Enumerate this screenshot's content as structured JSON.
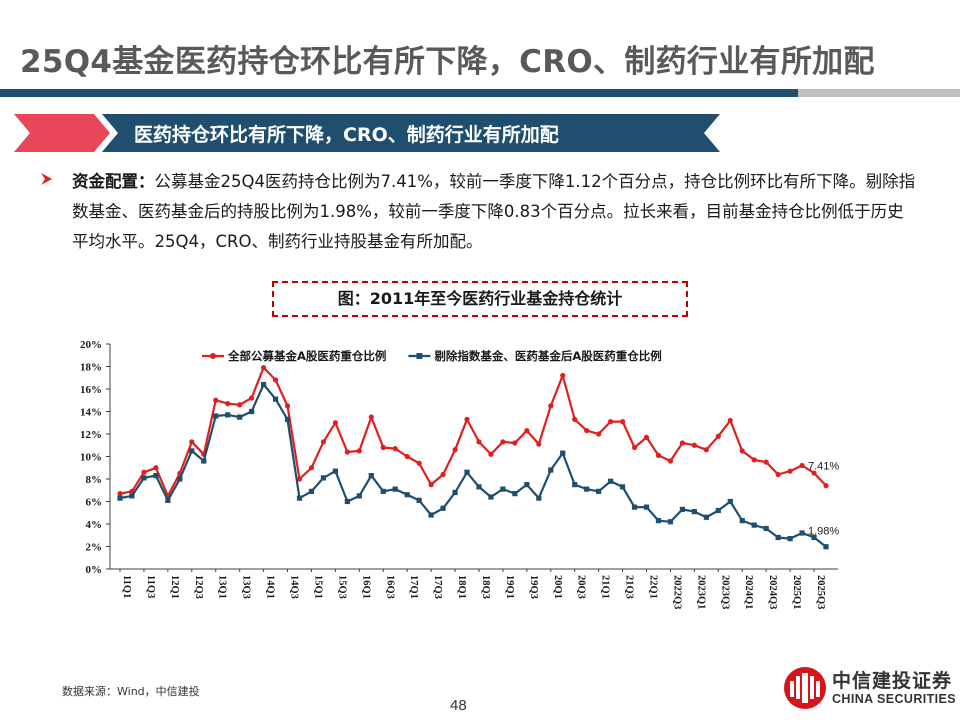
{
  "page": {
    "title": "25Q4基金医药持仓环比有所下降，CRO、制药行业有所加配",
    "page_number": "48",
    "source": "数据来源：Wind，中信建投"
  },
  "banner": {
    "text": "医药持仓环比有所下降，CRO、制药行业有所加配",
    "colors": {
      "red": "#e8475a",
      "blue": "#1f4e6f"
    }
  },
  "bullet": {
    "lead": "资金配置：",
    "text": "公募基金25Q4医药持仓比例为7.41%，较前一季度下降1.12个百分点，持仓比例环比有所下降。剔除指数基金、医药基金后的持股比例为1.98%，较前一季度下降0.83个百分点。拉长来看，目前基金持仓比例低于历史平均水平。25Q4，CRO、制药行业持股基金有所加配。"
  },
  "figure": {
    "title": "图：2011年至今医药行业基金持仓统计"
  },
  "logo": {
    "cn": "中信建投证券",
    "en": "CHINA SECURITIES"
  },
  "chart_data": {
    "type": "line",
    "ylim": [
      0,
      20
    ],
    "yticks": [
      0,
      2,
      4,
      6,
      8,
      10,
      12,
      14,
      16,
      18,
      20
    ],
    "ytick_labels": [
      "0%",
      "2%",
      "4%",
      "6%",
      "8%",
      "10%",
      "12%",
      "14%",
      "16%",
      "18%",
      "20%"
    ],
    "x": [
      "11Q1",
      "11Q2",
      "11Q3",
      "11Q4",
      "12Q1",
      "12Q2",
      "12Q3",
      "12Q4",
      "13Q1",
      "13Q2",
      "13Q3",
      "13Q4",
      "14Q1",
      "14Q2",
      "14Q3",
      "14Q4",
      "15Q1",
      "15Q2",
      "15Q3",
      "15Q4",
      "16Q1",
      "16Q2",
      "16Q3",
      "16Q4",
      "17Q1",
      "17Q2",
      "17Q3",
      "17Q4",
      "18Q1",
      "18Q2",
      "18Q3",
      "18Q4",
      "19Q1",
      "19Q2",
      "19Q3",
      "19Q4",
      "20Q1",
      "20Q2",
      "20Q3",
      "20Q4",
      "21Q1",
      "21Q2",
      "21Q3",
      "21Q4",
      "22Q1",
      "22Q2",
      "2022Q3",
      "2022Q4",
      "2023Q1",
      "2023Q2",
      "2023Q3",
      "2023Q4",
      "2024Q1",
      "2024Q2",
      "2024Q3",
      "2024Q4",
      "2025Q1",
      "2025Q2",
      "2025Q3",
      "2025Q4"
    ],
    "xtick_labels": [
      "11Q1",
      "11Q3",
      "12Q1",
      "12Q3",
      "13Q1",
      "13Q3",
      "14Q1",
      "14Q3",
      "15Q1",
      "15Q3",
      "16Q1",
      "16Q3",
      "17Q1",
      "17Q3",
      "18Q1",
      "18Q3",
      "19Q1",
      "19Q3",
      "20Q1",
      "20Q3",
      "21Q1",
      "21Q3",
      "22Q1",
      "2022Q3",
      "2023Q1",
      "2023Q3",
      "2024Q1",
      "2024Q3",
      "2025Q1",
      "2025Q3"
    ],
    "series": [
      {
        "name": "全部公募基金A股医药重仓比例",
        "color": "#e0201e",
        "marker": "circle",
        "values": [
          6.7,
          6.9,
          8.6,
          9.0,
          6.5,
          8.5,
          11.3,
          10.2,
          15.0,
          14.7,
          14.6,
          15.2,
          17.9,
          16.8,
          14.5,
          8.0,
          9.0,
          11.3,
          13.0,
          10.4,
          10.5,
          13.5,
          10.8,
          10.7,
          10.0,
          9.4,
          7.5,
          8.4,
          10.6,
          13.3,
          11.3,
          10.2,
          11.3,
          11.2,
          12.3,
          11.1,
          14.5,
          17.2,
          13.3,
          12.3,
          12.0,
          13.1,
          13.1,
          10.8,
          11.7,
          10.1,
          9.6,
          11.2,
          11.0,
          10.6,
          11.8,
          13.2,
          10.5,
          9.7,
          9.5,
          8.4,
          8.7,
          9.2,
          8.53,
          7.41
        ],
        "end_label": "7.41%"
      },
      {
        "name": "剔除指数基金、医药基金后A股医药重仓比例",
        "color": "#1f4e6f",
        "marker": "square",
        "values": [
          6.3,
          6.5,
          8.1,
          8.3,
          6.1,
          8.0,
          10.5,
          9.6,
          13.6,
          13.7,
          13.5,
          14.0,
          16.4,
          15.1,
          13.3,
          6.3,
          6.9,
          8.1,
          8.7,
          6.0,
          6.5,
          8.3,
          6.9,
          7.1,
          6.6,
          6.1,
          4.8,
          5.4,
          6.8,
          8.6,
          7.3,
          6.4,
          7.1,
          6.7,
          7.5,
          6.3,
          8.8,
          10.3,
          7.5,
          7.1,
          6.9,
          7.8,
          7.3,
          5.5,
          5.5,
          4.3,
          4.2,
          5.3,
          5.1,
          4.6,
          5.2,
          6.0,
          4.3,
          3.9,
          3.6,
          2.8,
          2.7,
          3.2,
          2.81,
          1.98
        ],
        "end_label": "1.98%"
      }
    ],
    "legend_position": "top"
  }
}
